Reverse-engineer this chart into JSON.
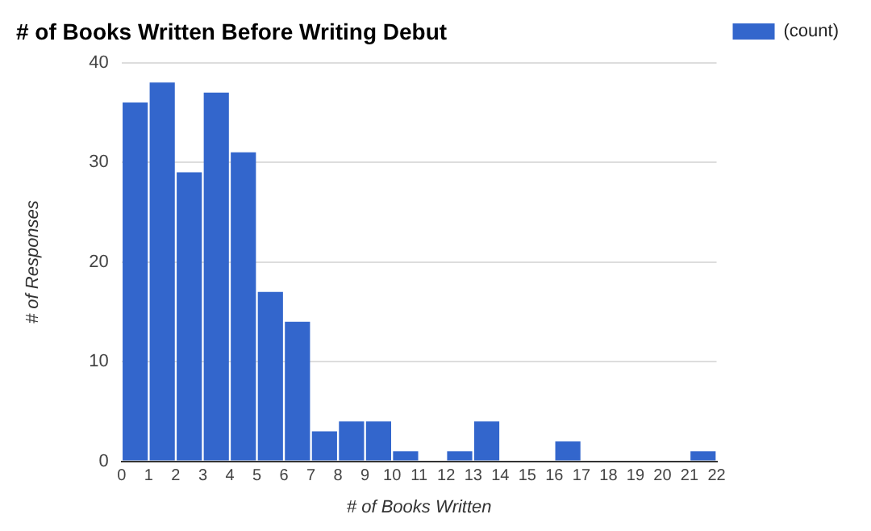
{
  "chart_data": {
    "type": "histogram",
    "title": "# of Books Written Before Writing Debut",
    "xlabel": "# of Books Written",
    "ylabel": "# of Responses",
    "bins": [
      0,
      1,
      2,
      3,
      4,
      5,
      6,
      7,
      8,
      9,
      10,
      11,
      12,
      13,
      14,
      15,
      16,
      17,
      18,
      19,
      20,
      21,
      22
    ],
    "series": [
      {
        "name": "(count)",
        "color": "#3366cc",
        "values": [
          36,
          38,
          29,
          37,
          31,
          17,
          14,
          3,
          4,
          4,
          1,
          0,
          1,
          4,
          0,
          0,
          2,
          0,
          0,
          0,
          0,
          1
        ]
      }
    ],
    "xlim": [
      0,
      22
    ],
    "xticks": [
      0,
      1,
      2,
      3,
      4,
      5,
      6,
      7,
      8,
      9,
      10,
      11,
      12,
      13,
      14,
      15,
      16,
      17,
      18,
      19,
      20,
      21,
      22
    ],
    "ylim": [
      0,
      40
    ],
    "yticks": [
      0,
      10,
      20,
      30,
      40
    ],
    "grid": "y",
    "legend": "top right"
  }
}
